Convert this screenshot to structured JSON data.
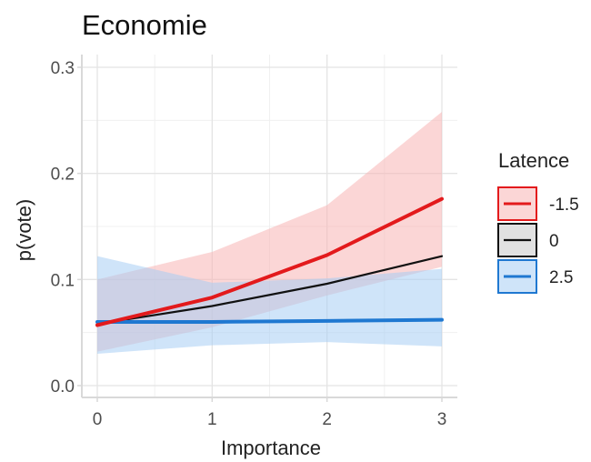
{
  "chart_data": {
    "type": "line",
    "title": "Economie",
    "xlabel": "Importance",
    "ylabel": "p(vote)",
    "x": [
      0,
      1,
      2,
      3
    ],
    "xlim": [
      0,
      3
    ],
    "ylim": [
      0,
      0.3
    ],
    "x_ticks": [
      "0",
      "1",
      "2",
      "3"
    ],
    "y_ticks": [
      "0.0",
      "0.1",
      "0.2",
      "0.3"
    ],
    "grid": true,
    "legend": {
      "title": "Latence",
      "placement": "right"
    },
    "series": [
      {
        "name": "-1.5",
        "color": "#e31a1c",
        "ribbon": "#f8b4b4",
        "values": [
          0.057,
          0.083,
          0.123,
          0.176
        ],
        "lower": [
          0.032,
          0.055,
          0.085,
          0.112
        ],
        "upper": [
          0.1,
          0.126,
          0.17,
          0.258
        ]
      },
      {
        "name": "0",
        "color": "#111111",
        "ribbon": "#c8c8c8",
        "values": [
          0.058,
          0.075,
          0.096,
          0.122
        ],
        "lower": [
          0.058,
          0.075,
          0.096,
          0.122
        ],
        "upper": [
          0.058,
          0.075,
          0.096,
          0.122
        ]
      },
      {
        "name": "2.5",
        "color": "#1f78d1",
        "ribbon": "#a8cdf4",
        "values": [
          0.06,
          0.06,
          0.061,
          0.062
        ],
        "lower": [
          0.03,
          0.038,
          0.041,
          0.037
        ],
        "upper": [
          0.122,
          0.097,
          0.101,
          0.11
        ]
      }
    ]
  }
}
